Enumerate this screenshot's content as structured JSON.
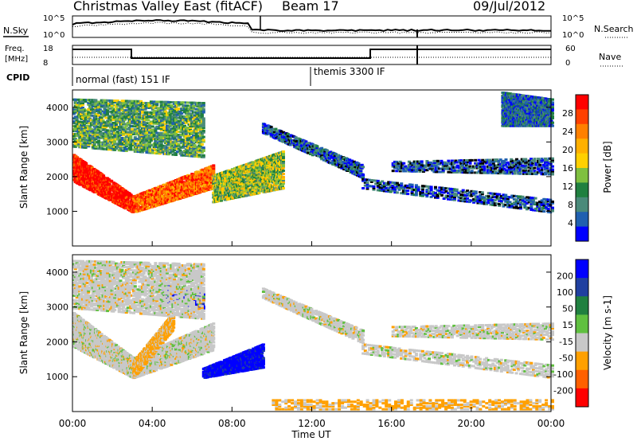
{
  "header": {
    "radar": "Christmas Valley East (fitACF)",
    "beam": "Beam 17",
    "date": "09/Jul/2012"
  },
  "top_panels": {
    "nsky_label": "N.Sky",
    "nsky_tick_hi": "10^5",
    "nsky_tick_lo": "10^0",
    "nsearch_label": "N.Search",
    "nsearch_tick_hi": "10^5",
    "nsearch_tick_lo": "10^0",
    "freq_label_1": "Freq.",
    "freq_label_2": "[MHz]",
    "freq_tick_hi": "18",
    "freq_tick_lo": "8",
    "nave_label": "Nave",
    "nave_tick_hi": "60",
    "nave_tick_lo": "0",
    "cpid_label": "CPID",
    "cpid_1": "normal (fast) 151 IF",
    "cpid_2": "themis 3300 IF"
  },
  "chart_data": [
    {
      "type": "heatmap",
      "name": "power",
      "ylabel": "Slant Range [km]",
      "ylim": [
        0,
        4500
      ],
      "yticks": [
        "1000",
        "2000",
        "3000",
        "4000"
      ],
      "colorbar_label": "Power [dB]",
      "colorbar_ticks": [
        "28",
        "24",
        "20",
        "16",
        "12",
        "8",
        "4"
      ],
      "colorbar_colors": [
        "#ff0000",
        "#ff4000",
        "#ff8000",
        "#ffb000",
        "#ffd000",
        "#7fc040",
        "#208040",
        "#4a8a7a",
        "#2060b0",
        "#0000ff"
      ],
      "bands": [
        {
          "t0": 0.0,
          "t1": 3.0,
          "r0": 1900,
          "r1": 2700,
          "r0b": 1000,
          "r1b": 1500,
          "level": 0.95
        },
        {
          "t0": 3.0,
          "t1": 7.0,
          "r0": 1000,
          "r1": 1500,
          "r0b": 1700,
          "r1b": 2400,
          "level": 0.8
        },
        {
          "t0": 7.0,
          "t1": 10.5,
          "r0": 1300,
          "r1": 2100,
          "r0b": 1700,
          "r1b": 2800,
          "level": 0.45
        },
        {
          "t0": 0.0,
          "t1": 6.5,
          "r0": 2900,
          "r1": 4300,
          "r0b": 2600,
          "r1b": 4200,
          "level": 0.35
        },
        {
          "t0": 9.5,
          "t1": 14.5,
          "r0": 3300,
          "r1": 3600,
          "r0b": 2000,
          "r1b": 2400,
          "level": 0.15
        },
        {
          "t0": 14.5,
          "t1": 24.0,
          "r0": 1700,
          "r1": 2000,
          "r0b": 1000,
          "r1b": 1400,
          "level": 0.12
        },
        {
          "t0": 16.0,
          "t1": 24.0,
          "r0": 2200,
          "r1": 2500,
          "r0b": 2100,
          "r1b": 2600,
          "level": 0.1
        },
        {
          "t0": 21.5,
          "t1": 24.0,
          "r0": 3500,
          "r1": 4500,
          "r0b": 3500,
          "r1b": 4300,
          "level": 0.2
        }
      ]
    },
    {
      "type": "heatmap",
      "name": "velocity",
      "ylabel": "Slant Range [km]",
      "xlabel": "Time UT",
      "ylim": [
        0,
        4500
      ],
      "yticks": [
        "1000",
        "2000",
        "3000",
        "4000"
      ],
      "xticks": [
        "00:00",
        "04:00",
        "08:00",
        "12:00",
        "16:00",
        "20:00",
        "00:00"
      ],
      "colorbar_label": "Velocity [m s-1]",
      "colorbar_ticks": [
        "200",
        "100",
        "50",
        "15",
        "-15",
        "-50",
        "-100",
        "-200"
      ],
      "colorbar_colors": [
        "#0000ff",
        "#2040a0",
        "#208040",
        "#60c040",
        "#c8c8c8",
        "#ffa000",
        "#ff6000",
        "#ff0000"
      ],
      "bands": [
        {
          "t0": 0.0,
          "t1": 3.0,
          "r0": 1900,
          "r1": 2900,
          "r0b": 1000,
          "r1b": 1600,
          "kind": "grey"
        },
        {
          "t0": 3.0,
          "t1": 7.0,
          "r0": 1000,
          "r1": 1600,
          "r0b": 1800,
          "r1b": 2600,
          "kind": "grey"
        },
        {
          "t0": 3.0,
          "t1": 5.0,
          "r0": 1000,
          "r1": 1500,
          "r0b": 2400,
          "r1b": 2900,
          "kind": "orange"
        },
        {
          "t0": 6.5,
          "t1": 9.5,
          "r0": 1000,
          "r1": 1300,
          "r0b": 1300,
          "r1b": 2000,
          "kind": "blue"
        },
        {
          "t0": 4.5,
          "t1": 6.5,
          "r0": 3200,
          "r1": 3700,
          "r0b": 3000,
          "r1b": 3500,
          "kind": "blue"
        },
        {
          "t0": 0.0,
          "t1": 6.5,
          "r0": 3000,
          "r1": 4400,
          "r0b": 2700,
          "r1b": 4300,
          "kind": "grey"
        },
        {
          "t0": 9.5,
          "t1": 14.5,
          "r0": 3300,
          "r1": 3600,
          "r0b": 2000,
          "r1b": 2400,
          "kind": "grey"
        },
        {
          "t0": 14.5,
          "t1": 24.0,
          "r0": 1700,
          "r1": 2000,
          "r0b": 1000,
          "r1b": 1400,
          "kind": "grey"
        },
        {
          "t0": 16.0,
          "t1": 24.0,
          "r0": 2200,
          "r1": 2500,
          "r0b": 2100,
          "r1b": 2600,
          "kind": "grey"
        },
        {
          "t0": 10.0,
          "t1": 24.0,
          "r0": 100,
          "r1": 400,
          "r0b": 100,
          "r1b": 400,
          "kind": "orange"
        }
      ]
    }
  ]
}
